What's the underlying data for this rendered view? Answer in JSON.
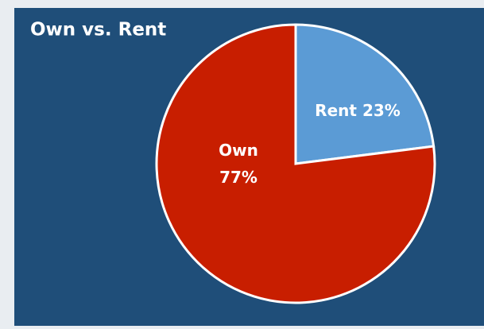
{
  "chart_data": {
    "type": "pie",
    "title": "Own vs. Rent",
    "categories": [
      "Rent",
      "Own"
    ],
    "values": [
      23,
      77
    ],
    "value_labels": [
      "23%",
      "77%"
    ],
    "colors": [
      "#5b9bd5",
      "#c81e00"
    ]
  }
}
